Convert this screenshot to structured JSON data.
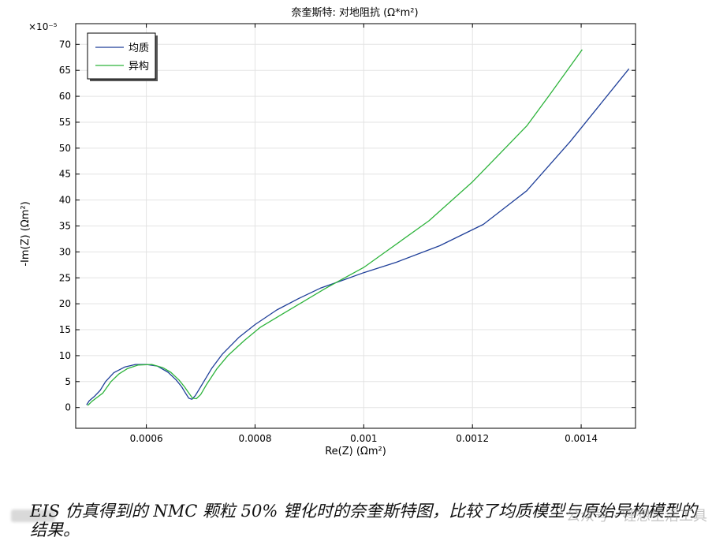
{
  "chart_data": {
    "type": "line",
    "title": "奈奎斯特: 对地阻抗 (Ω*m²)",
    "xlabel": "Re(Z) (Ωm²)",
    "ylabel": "-Im(Z) (Ωm²)",
    "y_multiplier": "×10⁻⁵",
    "xlim": [
      0.00047,
      0.0015
    ],
    "ylim": [
      -4,
      74
    ],
    "x_ticks": [
      {
        "value": 0.0006,
        "label": "0.0006"
      },
      {
        "value": 0.0008,
        "label": "0.0008"
      },
      {
        "value": 0.001,
        "label": "0.001"
      },
      {
        "value": 0.0012,
        "label": "0.0012"
      },
      {
        "value": 0.0014,
        "label": "0.0014"
      }
    ],
    "y_ticks": [
      0,
      5,
      10,
      15,
      20,
      25,
      30,
      35,
      40,
      45,
      50,
      55,
      60,
      65,
      70
    ],
    "grid": true,
    "legend_position": "top-left",
    "series": [
      {
        "name": "均质",
        "color": "#1f3f99",
        "points": [
          [
            0.00049,
            0.5
          ],
          [
            0.000495,
            1.3
          ],
          [
            0.000505,
            2.2
          ],
          [
            0.000515,
            3.3
          ],
          [
            0.000525,
            5.0
          ],
          [
            0.00054,
            6.7
          ],
          [
            0.00056,
            7.8
          ],
          [
            0.00058,
            8.3
          ],
          [
            0.0006,
            8.3
          ],
          [
            0.00062,
            8.0
          ],
          [
            0.00064,
            6.8
          ],
          [
            0.000655,
            5.3
          ],
          [
            0.000665,
            4.0
          ],
          [
            0.000672,
            2.8
          ],
          [
            0.000678,
            1.8
          ],
          [
            0.000684,
            1.6
          ],
          [
            0.00069,
            2.3
          ],
          [
            0.0007,
            4.0
          ],
          [
            0.00072,
            7.5
          ],
          [
            0.00074,
            10.3
          ],
          [
            0.00077,
            13.5
          ],
          [
            0.0008,
            16.0
          ],
          [
            0.00084,
            18.8
          ],
          [
            0.00088,
            21.0
          ],
          [
            0.00092,
            23.0
          ],
          [
            0.00096,
            24.5
          ],
          [
            0.001,
            26.0
          ],
          [
            0.00106,
            28.0
          ],
          [
            0.00114,
            31.2
          ],
          [
            0.00122,
            35.3
          ],
          [
            0.0013,
            41.8
          ],
          [
            0.00138,
            51.3
          ],
          [
            0.001488,
            65.3
          ]
        ]
      },
      {
        "name": "异构",
        "color": "#2db33b",
        "points": [
          [
            0.000492,
            0.4
          ],
          [
            0.0005,
            1.2
          ],
          [
            0.00051,
            2.0
          ],
          [
            0.00052,
            2.8
          ],
          [
            0.000535,
            5.0
          ],
          [
            0.00055,
            6.5
          ],
          [
            0.000565,
            7.5
          ],
          [
            0.000585,
            8.2
          ],
          [
            0.00061,
            8.3
          ],
          [
            0.00063,
            7.7
          ],
          [
            0.000645,
            6.8
          ],
          [
            0.00066,
            5.3
          ],
          [
            0.00067,
            4.0
          ],
          [
            0.000678,
            2.8
          ],
          [
            0.000685,
            1.8
          ],
          [
            0.000692,
            1.7
          ],
          [
            0.0007,
            2.5
          ],
          [
            0.00071,
            4.3
          ],
          [
            0.00073,
            7.5
          ],
          [
            0.00075,
            10.0
          ],
          [
            0.00078,
            12.9
          ],
          [
            0.00081,
            15.5
          ],
          [
            0.00085,
            18.0
          ],
          [
            0.00089,
            20.5
          ],
          [
            0.00093,
            23.0
          ],
          [
            0.00097,
            25.3
          ],
          [
            0.001,
            27.0
          ],
          [
            0.00104,
            30.0
          ],
          [
            0.00112,
            36.0
          ],
          [
            0.0012,
            43.5
          ],
          [
            0.0013,
            54.3
          ],
          [
            0.00134,
            60.0
          ],
          [
            0.001402,
            69.0
          ]
        ]
      }
    ]
  },
  "caption": "EIS 仿真得到的 NMC 颗粒 50% 锂化时的奈奎斯特图，比较了均质模型与原始异构模型的结果。",
  "watermark": "公众号 · 锂想生活工具"
}
